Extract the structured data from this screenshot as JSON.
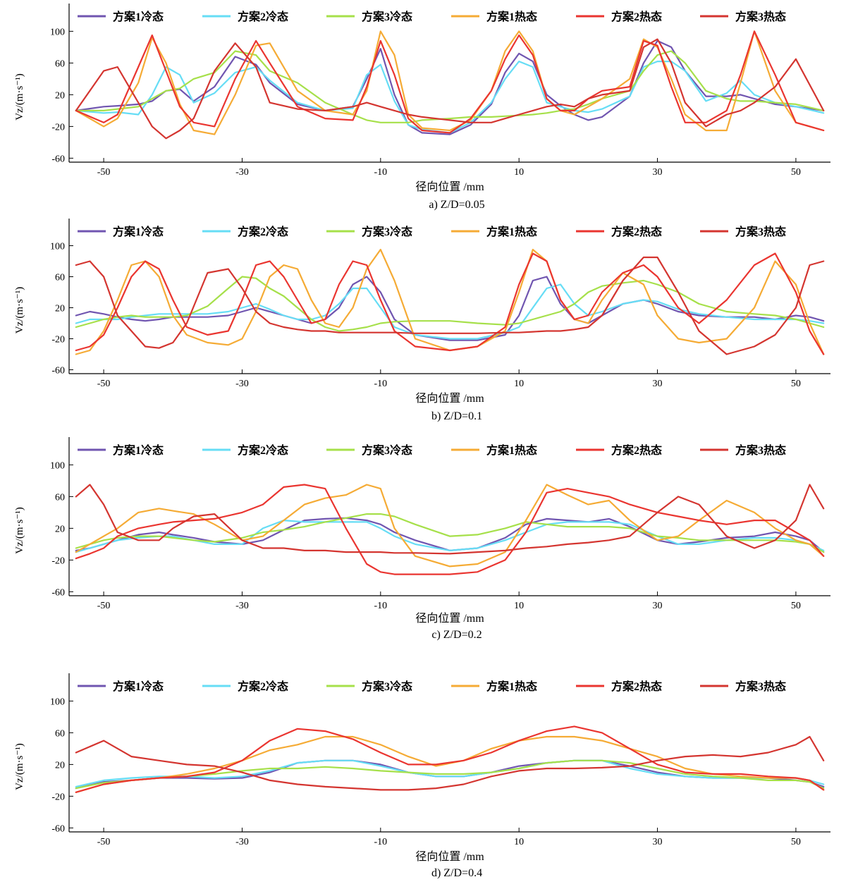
{
  "figure": {
    "series_names": [
      "方案1冷态",
      "方案2冷态",
      "方案3冷态",
      "方案1热态",
      "方案2热态",
      "方案3热态"
    ],
    "series_colors": [
      "#7055b0",
      "#66ddf5",
      "#a6e04a",
      "#f5ab35",
      "#ea3530",
      "#d43530"
    ],
    "ylabel": "Vz/(m·s⁻¹)",
    "xlabel": "径向位置 /mm",
    "x_ticks": [
      -50,
      -30,
      -10,
      10,
      30,
      50
    ],
    "y_ticks": [
      100,
      60,
      20,
      -20,
      -60
    ]
  },
  "chart_data": [
    {
      "type": "line",
      "caption": "a)  Z/D=0.05",
      "xlim": [
        -55,
        55
      ],
      "ylim": [
        -65,
        135
      ],
      "x": [
        -54,
        -50,
        -48,
        -45,
        -43,
        -41,
        -39,
        -37,
        -34,
        -31,
        -28,
        -26,
        -22,
        -18,
        -14,
        -12,
        -10,
        -8,
        -6,
        -4,
        0,
        3,
        6,
        8,
        10,
        12,
        14,
        16,
        18,
        20,
        22,
        26,
        28,
        30,
        32,
        34,
        37,
        40,
        42,
        44,
        47,
        50,
        54
      ],
      "series": [
        {
          "values": [
            0,
            5,
            6,
            8,
            12,
            25,
            27,
            12,
            30,
            68,
            58,
            35,
            8,
            0,
            5,
            40,
            78,
            20,
            -18,
            -28,
            -30,
            -18,
            8,
            48,
            72,
            62,
            20,
            6,
            -5,
            -12,
            -8,
            18,
            60,
            88,
            80,
            50,
            18,
            18,
            20,
            15,
            8,
            5,
            0
          ]
        },
        {
          "values": [
            0,
            -3,
            -2,
            -5,
            20,
            55,
            45,
            10,
            22,
            48,
            55,
            38,
            10,
            0,
            3,
            45,
            58,
            12,
            -18,
            -24,
            -28,
            -15,
            10,
            40,
            62,
            55,
            10,
            5,
            0,
            -2,
            2,
            18,
            55,
            62,
            62,
            50,
            12,
            22,
            38,
            20,
            10,
            5,
            -3
          ]
        },
        {
          "values": [
            0,
            0,
            2,
            5,
            15,
            25,
            28,
            40,
            48,
            75,
            70,
            50,
            35,
            10,
            -5,
            -12,
            -15,
            -15,
            -15,
            -12,
            -10,
            -8,
            -8,
            -7,
            -6,
            -5,
            -3,
            0,
            2,
            8,
            15,
            25,
            50,
            70,
            75,
            60,
            25,
            15,
            12,
            12,
            10,
            8,
            0
          ]
        },
        {
          "values": [
            0,
            -20,
            -10,
            35,
            92,
            60,
            8,
            -25,
            -30,
            20,
            82,
            85,
            25,
            0,
            -5,
            25,
            100,
            70,
            -5,
            -22,
            -25,
            -12,
            25,
            75,
            100,
            75,
            15,
            0,
            -5,
            5,
            15,
            40,
            90,
            80,
            40,
            -5,
            -25,
            -25,
            35,
            100,
            25,
            -15,
            -25
          ]
        },
        {
          "values": [
            0,
            -15,
            -5,
            55,
            95,
            50,
            5,
            -15,
            -20,
            40,
            88,
            60,
            5,
            -10,
            -12,
            30,
            88,
            45,
            -10,
            -25,
            -28,
            -10,
            25,
            65,
            95,
            70,
            15,
            0,
            0,
            15,
            25,
            30,
            88,
            82,
            30,
            -15,
            -15,
            0,
            45,
            100,
            45,
            -15,
            -25
          ]
        },
        {
          "values": [
            0,
            50,
            55,
            10,
            -20,
            -35,
            -25,
            -10,
            50,
            85,
            55,
            10,
            2,
            0,
            5,
            10,
            5,
            0,
            -5,
            -8,
            -12,
            -15,
            -15,
            -10,
            -5,
            0,
            5,
            8,
            5,
            15,
            20,
            25,
            80,
            90,
            60,
            10,
            -20,
            -5,
            0,
            10,
            30,
            65,
            0
          ]
        }
      ]
    },
    {
      "type": "line",
      "caption": "b)  Z/D=0.1",
      "xlim": [
        -55,
        55
      ],
      "ylim": [
        -65,
        135
      ],
      "x": [
        -54,
        -52,
        -50,
        -48,
        -46,
        -44,
        -42,
        -40,
        -38,
        -35,
        -32,
        -30,
        -28,
        -26,
        -24,
        -22,
        -20,
        -18,
        -16,
        -14,
        -12,
        -10,
        -8,
        -5,
        0,
        4,
        8,
        10,
        12,
        14,
        16,
        18,
        20,
        22,
        25,
        28,
        30,
        33,
        36,
        40,
        44,
        47,
        50,
        52,
        54
      ],
      "series": [
        {
          "values": [
            10,
            15,
            12,
            8,
            5,
            3,
            5,
            8,
            8,
            8,
            10,
            15,
            20,
            15,
            10,
            5,
            0,
            5,
            20,
            50,
            60,
            40,
            5,
            -15,
            -22,
            -22,
            -15,
            10,
            55,
            60,
            25,
            5,
            0,
            10,
            25,
            30,
            25,
            15,
            10,
            8,
            8,
            5,
            10,
            8,
            3
          ]
        },
        {
          "values": [
            0,
            5,
            5,
            5,
            8,
            10,
            12,
            12,
            12,
            12,
            15,
            20,
            25,
            18,
            10,
            5,
            5,
            10,
            25,
            45,
            45,
            20,
            -5,
            -15,
            -20,
            -20,
            -12,
            -5,
            20,
            45,
            50,
            25,
            10,
            15,
            25,
            30,
            28,
            18,
            12,
            8,
            5,
            5,
            5,
            3,
            0
          ]
        },
        {
          "values": [
            -5,
            0,
            5,
            8,
            10,
            8,
            8,
            8,
            10,
            22,
            45,
            60,
            58,
            45,
            35,
            20,
            5,
            -5,
            -10,
            -8,
            -5,
            0,
            2,
            3,
            3,
            0,
            -2,
            0,
            5,
            10,
            15,
            25,
            40,
            48,
            52,
            55,
            50,
            40,
            25,
            15,
            12,
            10,
            5,
            0,
            -5
          ]
        },
        {
          "values": [
            -40,
            -35,
            -10,
            30,
            75,
            80,
            60,
            10,
            -15,
            -25,
            -28,
            -20,
            15,
            60,
            75,
            70,
            30,
            0,
            -5,
            20,
            70,
            95,
            55,
            -20,
            -35,
            -30,
            -10,
            40,
            95,
            80,
            30,
            5,
            0,
            30,
            65,
            50,
            10,
            -20,
            -25,
            -20,
            20,
            80,
            50,
            0,
            -40
          ]
        },
        {
          "values": [
            -35,
            -30,
            -15,
            20,
            60,
            80,
            70,
            30,
            -5,
            -15,
            -10,
            30,
            75,
            80,
            60,
            30,
            0,
            5,
            50,
            80,
            75,
            30,
            -10,
            -30,
            -35,
            -30,
            -5,
            50,
            90,
            80,
            30,
            5,
            10,
            40,
            65,
            75,
            60,
            20,
            0,
            30,
            75,
            90,
            40,
            -10,
            -40
          ]
        },
        {
          "values": [
            75,
            80,
            60,
            10,
            -10,
            -30,
            -32,
            -25,
            0,
            65,
            70,
            45,
            15,
            0,
            -5,
            -8,
            -10,
            -10,
            -12,
            -12,
            -12,
            -12,
            -12,
            -13,
            -13,
            -13,
            -12,
            -12,
            -11,
            -10,
            -10,
            -8,
            -5,
            10,
            55,
            85,
            85,
            40,
            -10,
            -40,
            -30,
            -15,
            20,
            75,
            80
          ]
        }
      ]
    },
    {
      "type": "line",
      "caption": "c)  Z/D=0.2",
      "xlim": [
        -55,
        55
      ],
      "ylim": [
        -65,
        135
      ],
      "x": [
        -54,
        -52,
        -50,
        -48,
        -45,
        -42,
        -40,
        -37,
        -34,
        -30,
        -27,
        -24,
        -21,
        -18,
        -15,
        -12,
        -10,
        -8,
        -5,
        0,
        4,
        8,
        11,
        14,
        17,
        20,
        23,
        26,
        30,
        33,
        36,
        40,
        44,
        47,
        50,
        52,
        54
      ],
      "series": [
        {
          "values": [
            -8,
            -5,
            0,
            5,
            12,
            15,
            12,
            8,
            3,
            0,
            5,
            18,
            30,
            32,
            33,
            30,
            25,
            15,
            5,
            -8,
            -5,
            8,
            25,
            32,
            30,
            28,
            32,
            22,
            5,
            0,
            3,
            8,
            10,
            15,
            10,
            5,
            -10
          ]
        },
        {
          "values": [
            -10,
            -5,
            0,
            5,
            8,
            10,
            10,
            5,
            0,
            0,
            20,
            30,
            28,
            28,
            28,
            28,
            20,
            10,
            0,
            -8,
            -5,
            5,
            15,
            25,
            28,
            28,
            28,
            25,
            10,
            0,
            0,
            5,
            8,
            8,
            5,
            0,
            -8
          ]
        },
        {
          "values": [
            -5,
            0,
            5,
            8,
            10,
            10,
            8,
            5,
            3,
            8,
            15,
            18,
            22,
            28,
            33,
            38,
            38,
            35,
            25,
            10,
            12,
            20,
            28,
            25,
            22,
            22,
            22,
            20,
            10,
            8,
            5,
            5,
            5,
            5,
            3,
            0,
            -10
          ]
        },
        {
          "values": [
            -10,
            0,
            10,
            20,
            40,
            45,
            42,
            38,
            25,
            5,
            10,
            30,
            50,
            58,
            62,
            75,
            70,
            20,
            -15,
            -28,
            -25,
            -10,
            30,
            75,
            62,
            50,
            55,
            30,
            5,
            10,
            30,
            55,
            40,
            20,
            5,
            0,
            -15
          ]
        },
        {
          "values": [
            -18,
            -12,
            -5,
            10,
            20,
            25,
            28,
            30,
            32,
            40,
            50,
            72,
            75,
            70,
            20,
            -25,
            -35,
            -38,
            -38,
            -38,
            -35,
            -20,
            15,
            65,
            70,
            65,
            60,
            50,
            40,
            35,
            30,
            25,
            30,
            30,
            15,
            5,
            -15
          ]
        },
        {
          "values": [
            60,
            75,
            50,
            15,
            5,
            5,
            20,
            35,
            38,
            5,
            -5,
            -5,
            -8,
            -8,
            -10,
            -10,
            -10,
            -11,
            -11,
            -12,
            -10,
            -8,
            -5,
            -3,
            0,
            2,
            5,
            10,
            40,
            60,
            50,
            10,
            -5,
            5,
            30,
            75,
            45
          ]
        }
      ]
    },
    {
      "type": "line",
      "caption": "d)  Z/D=0.4",
      "xlim": [
        -55,
        55
      ],
      "ylim": [
        -65,
        135
      ],
      "x": [
        -54,
        -50,
        -46,
        -42,
        -38,
        -34,
        -30,
        -26,
        -22,
        -18,
        -14,
        -10,
        -6,
        -2,
        2,
        6,
        10,
        14,
        18,
        22,
        26,
        30,
        34,
        38,
        42,
        46,
        50,
        52,
        54
      ],
      "series": [
        {
          "values": [
            -10,
            -2,
            0,
            3,
            3,
            2,
            3,
            10,
            22,
            25,
            25,
            20,
            10,
            5,
            5,
            10,
            18,
            22,
            25,
            25,
            18,
            10,
            5,
            3,
            3,
            3,
            0,
            -2,
            -8
          ]
        },
        {
          "values": [
            -8,
            0,
            3,
            5,
            5,
            3,
            5,
            12,
            22,
            25,
            25,
            18,
            10,
            5,
            5,
            10,
            15,
            22,
            25,
            25,
            15,
            8,
            5,
            3,
            3,
            3,
            3,
            0,
            -5
          ]
        },
        {
          "values": [
            -10,
            -3,
            0,
            3,
            5,
            8,
            12,
            15,
            15,
            17,
            15,
            12,
            10,
            8,
            8,
            10,
            15,
            22,
            25,
            25,
            22,
            15,
            8,
            5,
            3,
            0,
            0,
            -2,
            -10
          ]
        },
        {
          "values": [
            -15,
            -5,
            0,
            3,
            8,
            15,
            25,
            38,
            45,
            55,
            55,
            45,
            30,
            18,
            25,
            40,
            50,
            55,
            55,
            50,
            40,
            30,
            15,
            8,
            5,
            3,
            3,
            0,
            -12
          ]
        },
        {
          "values": [
            -15,
            -5,
            0,
            3,
            5,
            10,
            25,
            50,
            65,
            62,
            52,
            35,
            20,
            20,
            25,
            35,
            50,
            62,
            68,
            60,
            40,
            20,
            10,
            8,
            8,
            5,
            3,
            0,
            -12
          ]
        },
        {
          "values": [
            35,
            50,
            30,
            25,
            20,
            18,
            10,
            0,
            -5,
            -8,
            -10,
            -12,
            -12,
            -10,
            -5,
            5,
            12,
            15,
            15,
            16,
            18,
            25,
            30,
            32,
            30,
            35,
            45,
            55,
            25
          ]
        }
      ]
    }
  ]
}
